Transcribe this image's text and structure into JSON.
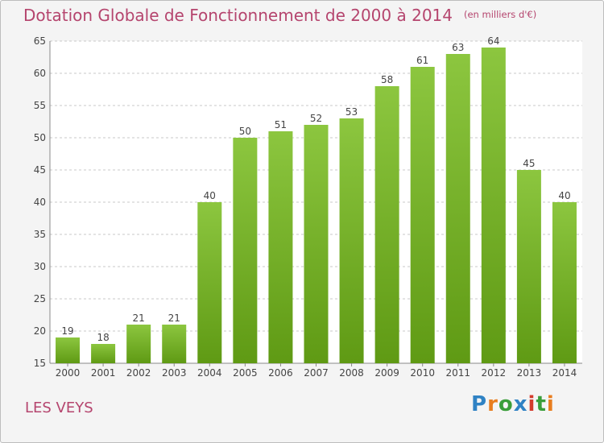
{
  "title": "Dotation Globale de Fonctionnement de 2000 à 2014",
  "unit": "(en milliers d'€)",
  "place": "LES VEYS",
  "logo": {
    "letters": [
      "P",
      "r",
      "o",
      "x",
      "i",
      "t",
      "i"
    ],
    "colors": [
      "#2f82c4",
      "#e87d1e",
      "#3a9e3a",
      "#2f82c4",
      "#d33b2c",
      "#3a9e3a",
      "#e87d1e"
    ]
  },
  "colors": {
    "bar": "#8cc63f",
    "bar_dark": "#5f9a14",
    "title": "#b5456e",
    "grid": "#c8c8c8"
  },
  "chart_data": {
    "type": "bar",
    "categories": [
      "2000",
      "2001",
      "2002",
      "2003",
      "2004",
      "2005",
      "2006",
      "2007",
      "2008",
      "2009",
      "2010",
      "2011",
      "2012",
      "2013",
      "2014"
    ],
    "values": [
      19,
      18,
      21,
      21,
      40,
      50,
      51,
      52,
      53,
      58,
      61,
      63,
      64,
      45,
      40
    ],
    "ylim": [
      15,
      65
    ],
    "yticks": [
      15,
      20,
      25,
      30,
      35,
      40,
      45,
      50,
      55,
      60,
      65
    ],
    "grid": true,
    "title": "Dotation Globale de Fonctionnement de 2000 à 2014",
    "xlabel": "",
    "ylabel": ""
  }
}
